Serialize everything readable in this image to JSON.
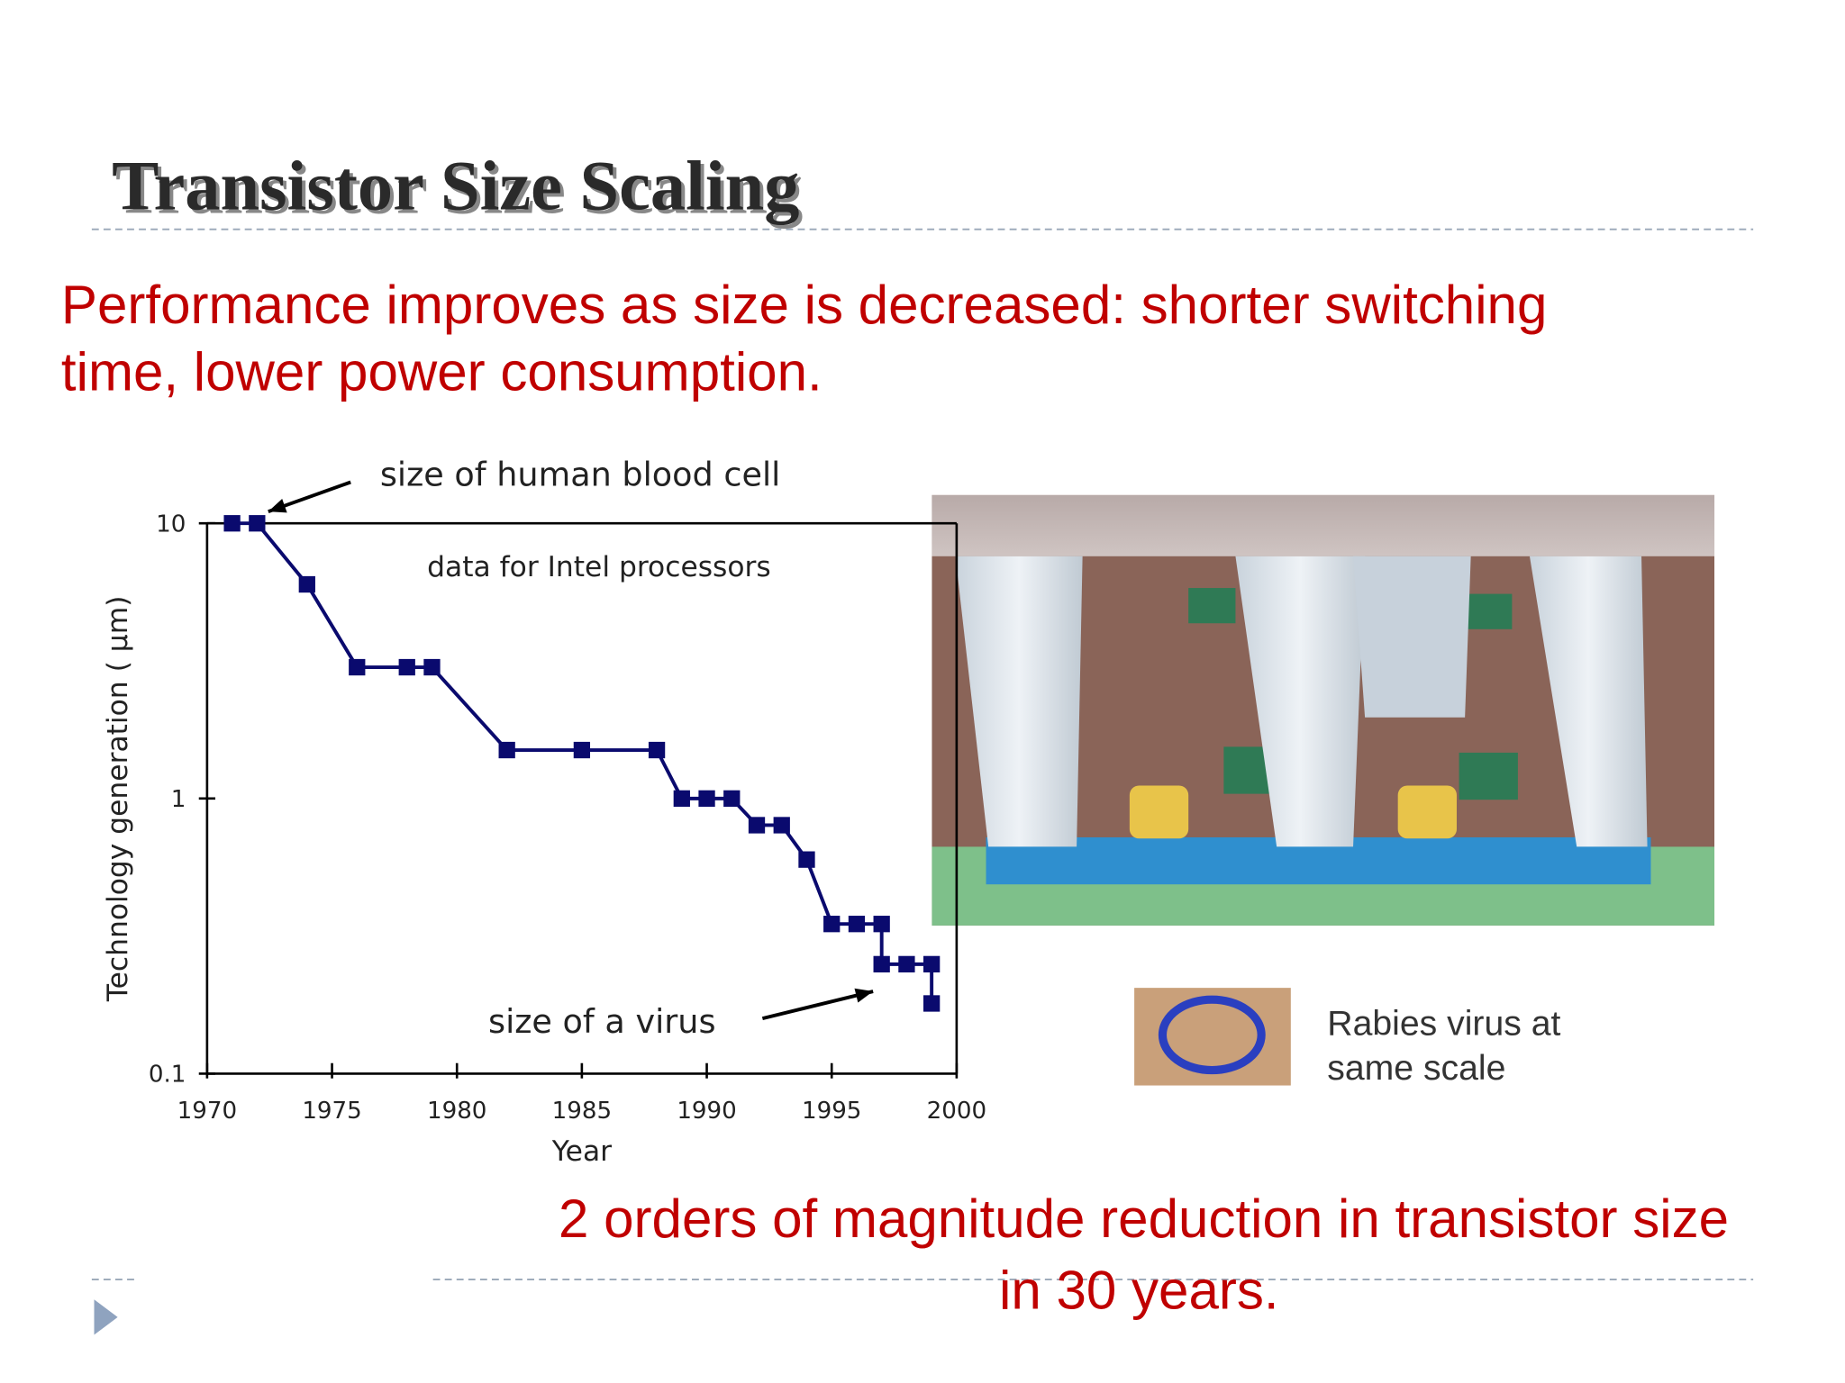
{
  "slide": {
    "title": "Transistor Size Scaling",
    "body": [
      "Performance improves as size is decreased: shorter switching",
      "time, lower power consumption."
    ],
    "footer": [
      "2 orders of magnitude reduction in transistor size",
      "in 30 years."
    ],
    "caption": [
      "Rabies virus at",
      "same scale"
    ]
  },
  "chart_data": {
    "type": "line",
    "x_label": "Year",
    "y_label": "Technology generation ( μm)",
    "annotations": [
      "size of human blood cell",
      "data for Intel processors",
      "size of a virus"
    ],
    "x": [
      1971,
      1972,
      1974,
      1976,
      1978,
      1979,
      1982,
      1985,
      1988,
      1989,
      1990,
      1991,
      1992,
      1993,
      1994,
      1995,
      1996,
      1997,
      1997,
      1998,
      1999,
      1999
    ],
    "series": [
      {
        "color": "#0a0a6e",
        "values": [
          10,
          10,
          6,
          3,
          3,
          3,
          1.5,
          1.5,
          1.5,
          1,
          1,
          1,
          0.8,
          0.8,
          0.6,
          0.35,
          0.35,
          0.35,
          0.25,
          0.25,
          0.25,
          0.18
        ]
      }
    ],
    "xlim": [
      1970,
      2000
    ],
    "xticks": [
      1970,
      1975,
      1980,
      1985,
      1990,
      1995,
      2000
    ],
    "ylim": [
      0.1,
      10
    ],
    "yticks": [
      0.1,
      1,
      10
    ],
    "ylog": true
  }
}
